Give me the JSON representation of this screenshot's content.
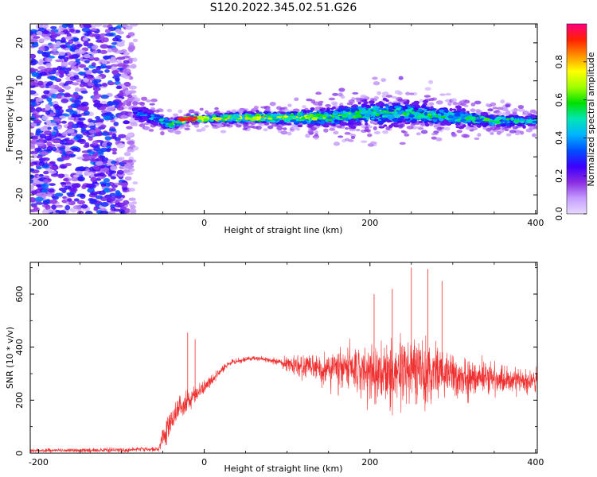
{
  "title": "S120.2022.345.02.51.G26",
  "chart_data": [
    {
      "type": "heatmap",
      "xlabel": "Height of straight line (km)",
      "ylabel": "Frequency (Hz)",
      "xlim": [
        -210,
        402
      ],
      "ylim": [
        -25,
        25
      ],
      "x_ticks": [
        -200,
        0,
        200,
        400
      ],
      "y_ticks": [
        -20,
        -10,
        0,
        10,
        20
      ],
      "colorbar": {
        "label": "Normalized spectral amplitude",
        "range": [
          0,
          1
        ],
        "ticks": [
          0.0,
          0.2,
          0.4,
          0.6,
          0.8
        ],
        "colormap": [
          "#e8d9ff",
          "#c49cff",
          "#8a2be2",
          "#3b00ff",
          "#0050ff",
          "#00b4ff",
          "#00e6b4",
          "#00e000",
          "#a0ff00",
          "#ffff00",
          "#ff9000",
          "#ff2000",
          "#ff0080"
        ]
      },
      "band_profile": [
        {
          "x": -80,
          "center": 1.5,
          "halfwidth": 3.0,
          "peak": 0.35
        },
        {
          "x": -60,
          "center": 0.0,
          "halfwidth": 2.5,
          "peak": 0.45
        },
        {
          "x": -40,
          "center": -1.5,
          "halfwidth": 2.0,
          "peak": 0.6
        },
        {
          "x": -20,
          "center": 0.0,
          "halfwidth": 1.2,
          "peak": 0.95
        },
        {
          "x": 0,
          "center": 0.0,
          "halfwidth": 1.5,
          "peak": 0.8
        },
        {
          "x": 50,
          "center": 0.3,
          "halfwidth": 2.0,
          "peak": 0.75
        },
        {
          "x": 100,
          "center": 0.3,
          "halfwidth": 2.5,
          "peak": 0.7
        },
        {
          "x": 150,
          "center": 0.5,
          "halfwidth": 3.5,
          "peak": 0.6
        },
        {
          "x": 200,
          "center": 1.5,
          "halfwidth": 5.0,
          "peak": 0.55
        },
        {
          "x": 250,
          "center": 1.5,
          "halfwidth": 4.5,
          "peak": 0.55
        },
        {
          "x": 300,
          "center": 0.5,
          "halfwidth": 3.5,
          "peak": 0.55
        },
        {
          "x": 350,
          "center": -0.5,
          "halfwidth": 2.5,
          "peak": 0.55
        },
        {
          "x": 400,
          "center": -0.5,
          "halfwidth": 2.0,
          "peak": 0.5
        }
      ],
      "noise_region": {
        "x_range": [
          -210,
          -85
        ],
        "y_range": [
          -25,
          25
        ],
        "peak": 0.3
      }
    },
    {
      "type": "line",
      "xlabel": "Height of straight line (km)",
      "ylabel": "SNR (10 * v/v)",
      "xlim": [
        -210,
        402
      ],
      "ylim": [
        0,
        720
      ],
      "x_ticks": [
        -200,
        0,
        200,
        400
      ],
      "y_ticks": [
        0,
        200,
        400,
        600
      ],
      "color": "#ef3030",
      "envelope": [
        {
          "x": -210,
          "mean": 10,
          "spread": 8
        },
        {
          "x": -100,
          "mean": 12,
          "spread": 10
        },
        {
          "x": -55,
          "mean": 15,
          "spread": 12
        },
        {
          "x": -45,
          "mean": 100,
          "spread": 70
        },
        {
          "x": -30,
          "mean": 170,
          "spread": 60
        },
        {
          "x": -10,
          "mean": 220,
          "spread": 40
        },
        {
          "x": 10,
          "mean": 280,
          "spread": 25
        },
        {
          "x": 30,
          "mean": 340,
          "spread": 15
        },
        {
          "x": 60,
          "mean": 360,
          "spread": 10
        },
        {
          "x": 90,
          "mean": 345,
          "spread": 15
        },
        {
          "x": 110,
          "mean": 330,
          "spread": 50
        },
        {
          "x": 150,
          "mean": 320,
          "spread": 90
        },
        {
          "x": 200,
          "mean": 300,
          "spread": 140
        },
        {
          "x": 250,
          "mean": 310,
          "spread": 170
        },
        {
          "x": 300,
          "mean": 290,
          "spread": 110
        },
        {
          "x": 350,
          "mean": 280,
          "spread": 70
        },
        {
          "x": 400,
          "mean": 270,
          "spread": 50
        }
      ],
      "spikes": [
        {
          "x": -20,
          "y": 455
        },
        {
          "x": -11,
          "y": 430
        },
        {
          "x": 205,
          "y": 600
        },
        {
          "x": 227,
          "y": 620
        },
        {
          "x": 250,
          "y": 700
        },
        {
          "x": 270,
          "y": 695
        },
        {
          "x": 287,
          "y": 650
        }
      ]
    }
  ]
}
